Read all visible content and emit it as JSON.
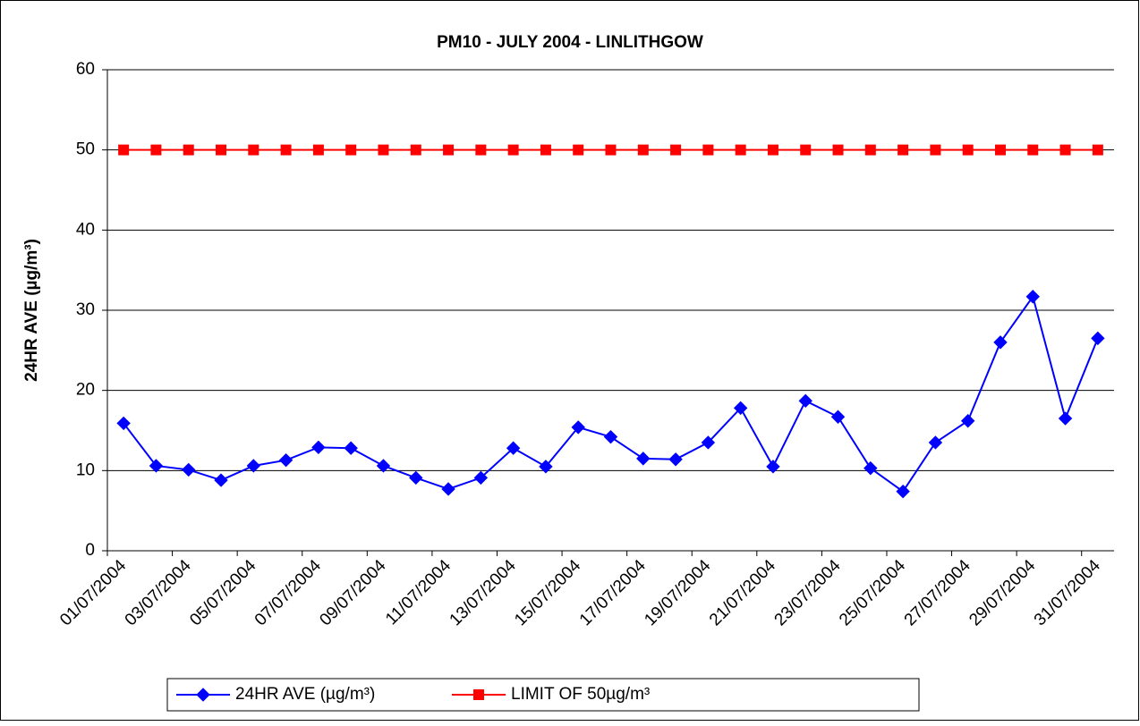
{
  "chart_data": {
    "type": "line",
    "title": "PM10 - JULY 2004 - LINLITHGOW",
    "y_label": "24HR AVE (µg/m³)",
    "categories": [
      "01/07/2004",
      null,
      "03/07/2004",
      null,
      "05/07/2004",
      null,
      "07/07/2004",
      null,
      "09/07/2004",
      null,
      "11/07/2004",
      null,
      "13/07/2004",
      null,
      "15/07/2004",
      null,
      "17/07/2004",
      null,
      "19/07/2004",
      null,
      "21/07/2004",
      null,
      "23/07/2004",
      null,
      "25/07/2004",
      null,
      "27/07/2004",
      null,
      "29/07/2004",
      null,
      "31/07/2004"
    ],
    "series": [
      {
        "name": "24HR AVE (µg/m³)",
        "color": "#0000ff",
        "marker": "diamond",
        "values": [
          15.9,
          10.6,
          10.1,
          8.8,
          10.6,
          11.3,
          12.9,
          12.8,
          10.6,
          9.1,
          7.7,
          9.1,
          12.8,
          10.5,
          15.4,
          14.2,
          11.5,
          11.4,
          13.5,
          17.8,
          10.5,
          18.7,
          16.7,
          10.3,
          7.4,
          13.5,
          16.2,
          26.0,
          31.7,
          16.5,
          26.5
        ]
      },
      {
        "name": "LIMIT OF 50µg/m³",
        "color": "#ff0000",
        "marker": "square",
        "values": [
          50,
          50,
          50,
          50,
          50,
          50,
          50,
          50,
          50,
          50,
          50,
          50,
          50,
          50,
          50,
          50,
          50,
          50,
          50,
          50,
          50,
          50,
          50,
          50,
          50,
          50,
          50,
          50,
          50,
          50,
          50
        ]
      }
    ],
    "ylim": [
      0,
      60
    ],
    "yticks": [
      0,
      10,
      20,
      30,
      40,
      50,
      60
    ],
    "grid": true
  }
}
